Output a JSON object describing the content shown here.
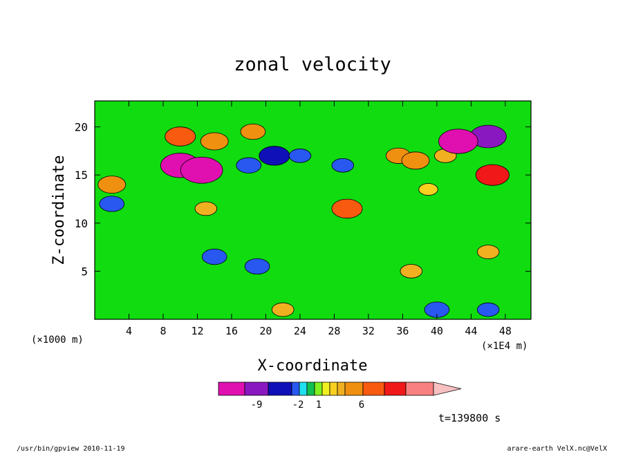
{
  "chart_data": {
    "type": "heatmap",
    "title": "zonal velocity",
    "xlabel": "X-coordinate",
    "ylabel": "Z-coordinate",
    "x_unit_label": "(×1E4 m)",
    "y_unit_label": "(×1000 m)",
    "xlim": [
      0,
      51
    ],
    "ylim": [
      0,
      22.7
    ],
    "x_ticks": [
      4,
      8,
      12,
      16,
      20,
      24,
      28,
      32,
      36,
      40,
      44,
      48
    ],
    "y_ticks": [
      5,
      10,
      15,
      20
    ],
    "colorbar": {
      "colors": [
        "#e010b0",
        "#8a18c0",
        "#1010b8",
        "#2858f0",
        "#20e0f0",
        "#10c050",
        "#80f020",
        "#f0f020",
        "#f8d020",
        "#f0b020",
        "#f09010",
        "#f85a10",
        "#f01818",
        "#f88080",
        "#f8c0c0"
      ],
      "tick_labels": [
        "-9",
        "-2",
        "1",
        "6"
      ],
      "extend": "max"
    },
    "background_color": "#10dc10",
    "field_cells": [
      {
        "x": 2,
        "z": 14,
        "v": 5
      },
      {
        "x": 2,
        "z": 12,
        "v": -4
      },
      {
        "x": 10,
        "z": 19,
        "v": 6
      },
      {
        "x": 10,
        "z": 16,
        "v": -9
      },
      {
        "x": 12.5,
        "z": 15.5,
        "v": -10
      },
      {
        "x": 14,
        "z": 18.5,
        "v": 5
      },
      {
        "x": 13,
        "z": 11.5,
        "v": 3
      },
      {
        "x": 18,
        "z": 16,
        "v": -4
      },
      {
        "x": 18.5,
        "z": 19.5,
        "v": 4
      },
      {
        "x": 14,
        "z": 6.5,
        "v": -4
      },
      {
        "x": 19,
        "z": 5.5,
        "v": -4
      },
      {
        "x": 21,
        "z": 17,
        "v": -6
      },
      {
        "x": 29.5,
        "z": 11.5,
        "v": 6
      },
      {
        "x": 29,
        "z": 16,
        "v": -3
      },
      {
        "x": 35.5,
        "z": 17,
        "v": 4
      },
      {
        "x": 37.5,
        "z": 16.5,
        "v": 5
      },
      {
        "x": 41,
        "z": 17,
        "v": 3
      },
      {
        "x": 37,
        "z": 5,
        "v": 3
      },
      {
        "x": 46,
        "z": 19,
        "v": -8
      },
      {
        "x": 42.5,
        "z": 18.5,
        "v": -9
      },
      {
        "x": 46.5,
        "z": 15,
        "v": 7
      },
      {
        "x": 46,
        "z": 7,
        "v": 3
      },
      {
        "x": 24,
        "z": 17,
        "v": -3
      },
      {
        "x": 22,
        "z": 1,
        "v": 3
      },
      {
        "x": 40,
        "z": 1,
        "v": -4
      },
      {
        "x": 46,
        "z": 1,
        "v": -3
      },
      {
        "x": 39,
        "z": 13.5,
        "v": 2
      }
    ],
    "time_label": "t=139800 s"
  },
  "footer": {
    "left": "/usr/bin/gpview  2010-11-19",
    "right": "arare-earth_VelX.nc@VelX"
  }
}
